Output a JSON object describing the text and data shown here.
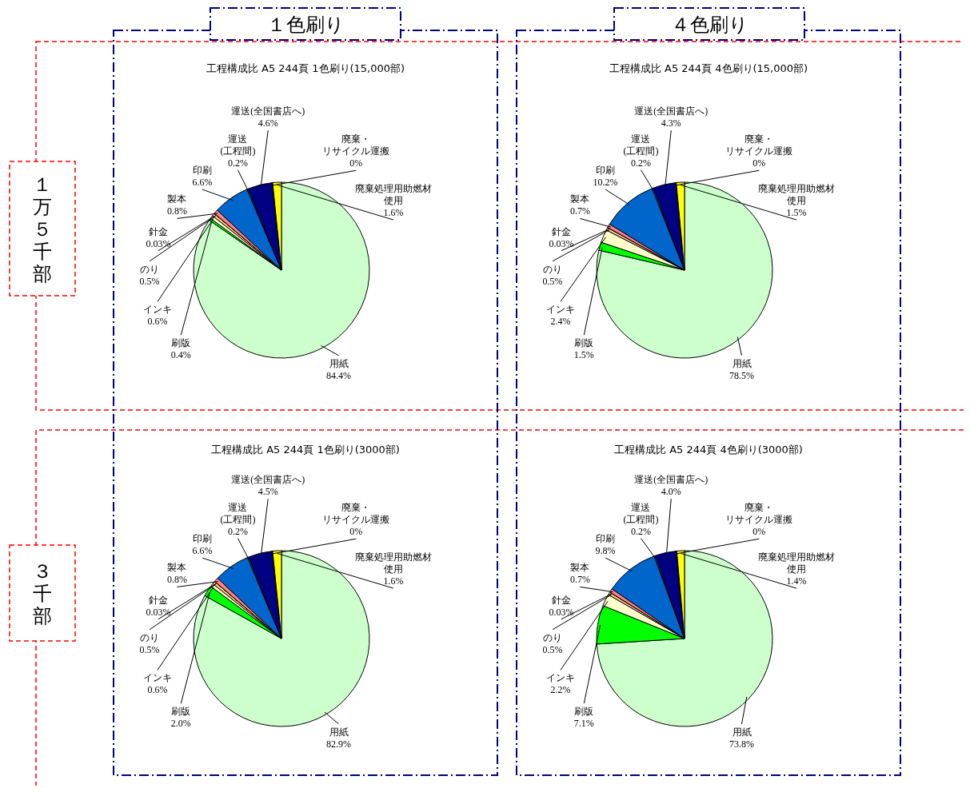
{
  "chart_data": [
    {
      "type": "pie",
      "title": "工程構成比 A5 244頁 1色刷り(15,000部)",
      "categories": [
        "用紙",
        "刷版",
        "インキ",
        "のり",
        "針金",
        "製本",
        "印刷",
        "運送(工程間)",
        "運送(全国書店へ)",
        "廃棄・リサイクル運搬",
        "廃棄処理用助燃材使用"
      ],
      "values": [
        84.4,
        0.4,
        0.6,
        0.5,
        0.03,
        0.8,
        6.6,
        0.2,
        4.6,
        0,
        1.6
      ],
      "value_labels": [
        "84.4%",
        "0.4%",
        "0.6%",
        "0.5%",
        "0.03%",
        "0.8%",
        "6.6%",
        "0.2%",
        "4.6%",
        "0%",
        "1.6%"
      ],
      "colors": [
        "#ccffcc",
        "#00ff00",
        "#ffffcc",
        "#ffcc99",
        "#c0c0c0",
        "#ff8080",
        "#0066cc",
        "#99ccff",
        "#000080",
        "#ff0000",
        "#ffff00"
      ],
      "annotations": [
        "１色刷り",
        "１万５千部"
      ]
    },
    {
      "type": "pie",
      "title": "工程構成比 A5 244頁 4色刷り(15,000部)",
      "categories": [
        "用紙",
        "刷版",
        "インキ",
        "のり",
        "針金",
        "製本",
        "印刷",
        "運送(工程間)",
        "運送(全国書店へ)",
        "廃棄・リサイクル運搬",
        "廃棄処理用助燃材使用"
      ],
      "values": [
        78.5,
        1.5,
        2.4,
        0.5,
        0.03,
        0.7,
        10.2,
        0.2,
        4.3,
        0,
        1.5
      ],
      "value_labels": [
        "78.5%",
        "1.5%",
        "2.4%",
        "0.5%",
        "0.03%",
        "0.7%",
        "10.2%",
        "0.2%",
        "4.3%",
        "0%",
        "1.5%"
      ],
      "colors": [
        "#ccffcc",
        "#00ff00",
        "#ffffcc",
        "#ffcc99",
        "#c0c0c0",
        "#ff8080",
        "#0066cc",
        "#99ccff",
        "#000080",
        "#ff0000",
        "#ffff00"
      ],
      "annotations": [
        "４色刷り"
      ]
    },
    {
      "type": "pie",
      "title": "工程構成比 A5 244頁 1色刷り(3000部)",
      "categories": [
        "用紙",
        "刷版",
        "インキ",
        "のり",
        "針金",
        "製本",
        "印刷",
        "運送(工程間)",
        "運送(全国書店へ)",
        "廃棄・リサイクル運搬",
        "廃棄処理用助燃材使用"
      ],
      "values": [
        82.9,
        2.0,
        0.6,
        0.5,
        0.03,
        0.8,
        6.6,
        0.2,
        4.5,
        0,
        1.6
      ],
      "value_labels": [
        "82.9%",
        "2.0%",
        "0.6%",
        "0.5%",
        "0.03%",
        "0.8%",
        "6.6%",
        "0.2%",
        "4.5%",
        "0%",
        "1.6%"
      ],
      "colors": [
        "#ccffcc",
        "#00ff00",
        "#ffffcc",
        "#ffcc99",
        "#c0c0c0",
        "#ff8080",
        "#0066cc",
        "#99ccff",
        "#000080",
        "#ff0000",
        "#ffff00"
      ],
      "annotations": [
        "３千部"
      ]
    },
    {
      "type": "pie",
      "title": "工程構成比 A5 244頁 4色刷り(3000部)",
      "categories": [
        "用紙",
        "刷版",
        "インキ",
        "のり",
        "針金",
        "製本",
        "印刷",
        "運送(工程間)",
        "運送(全国書店へ)",
        "廃棄・リサイクル運搬",
        "廃棄処理用助燃材使用"
      ],
      "values": [
        73.8,
        7.1,
        2.2,
        0.5,
        0.03,
        0.7,
        9.8,
        0.2,
        4.0,
        0,
        1.4
      ],
      "value_labels": [
        "73.8%",
        "7.1%",
        "2.2%",
        "0.5%",
        "0.03%",
        "0.7%",
        "9.8%",
        "0.2%",
        "4.0%",
        "0%",
        "1.4%"
      ],
      "colors": [
        "#ccffcc",
        "#00ff00",
        "#ffffcc",
        "#ffcc99",
        "#c0c0c0",
        "#ff8080",
        "#0066cc",
        "#99ccff",
        "#000080",
        "#ff0000",
        "#ffff00"
      ]
    }
  ]
}
